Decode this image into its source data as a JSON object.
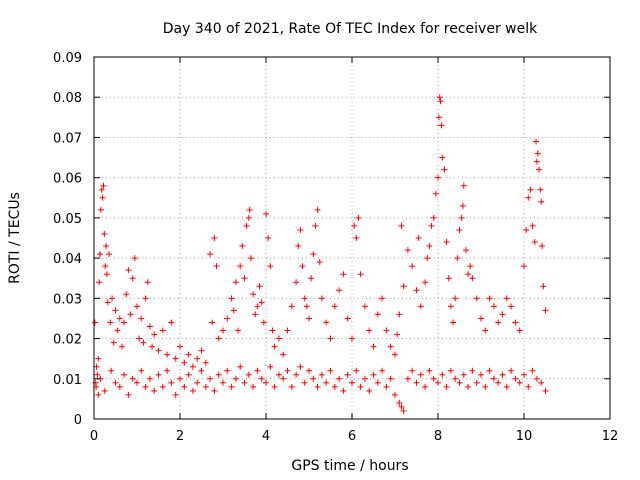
{
  "chart_data": {
    "type": "scatter",
    "title": "Day 340 of 2021, Rate Of TEC Index for receiver welk",
    "xlabel": "GPS time / hours",
    "ylabel": "ROTI / TECUs",
    "xlim": [
      0,
      12
    ],
    "ylim": [
      0,
      0.09
    ],
    "x_ticks": [
      "0",
      "2",
      "4",
      "6",
      "8",
      "10",
      "12"
    ],
    "y_ticks": [
      "0",
      "0.01",
      "0.02",
      "0.03",
      "0.04",
      "0.05",
      "0.06",
      "0.07",
      "0.08",
      "0.09"
    ],
    "grid": true,
    "marker": "+",
    "color": "#ff0000",
    "series": [
      {
        "name": "ROTI",
        "points": [
          [
            0.02,
            0.024
          ],
          [
            0.04,
            0.009
          ],
          [
            0.06,
            0.013
          ],
          [
            0.08,
            0.011
          ],
          [
            0.1,
            0.015
          ],
          [
            0.12,
            0.034
          ],
          [
            0.14,
            0.041
          ],
          [
            0.16,
            0.052
          ],
          [
            0.18,
            0.057
          ],
          [
            0.2,
            0.055
          ],
          [
            0.22,
            0.058
          ],
          [
            0.24,
            0.046
          ],
          [
            0.26,
            0.038
          ],
          [
            0.28,
            0.043
          ],
          [
            0.3,
            0.036
          ],
          [
            0.32,
            0.029
          ],
          [
            0.35,
            0.041
          ],
          [
            0.38,
            0.024
          ],
          [
            0.42,
            0.03
          ],
          [
            0.46,
            0.019
          ],
          [
            0.5,
            0.027
          ],
          [
            0.55,
            0.022
          ],
          [
            0.6,
            0.025
          ],
          [
            0.65,
            0.018
          ],
          [
            0.7,
            0.024
          ],
          [
            0.75,
            0.031
          ],
          [
            0.8,
            0.037
          ],
          [
            0.85,
            0.026
          ],
          [
            0.9,
            0.035
          ],
          [
            0.95,
            0.04
          ],
          [
            1.0,
            0.028
          ],
          [
            1.05,
            0.02
          ],
          [
            1.1,
            0.025
          ],
          [
            1.15,
            0.019
          ],
          [
            1.2,
            0.03
          ],
          [
            1.25,
            0.034
          ],
          [
            1.3,
            0.023
          ],
          [
            1.35,
            0.018
          ],
          [
            1.4,
            0.021
          ],
          [
            1.5,
            0.017
          ],
          [
            1.6,
            0.022
          ],
          [
            1.7,
            0.016
          ],
          [
            1.8,
            0.024
          ],
          [
            1.9,
            0.015
          ],
          [
            2.0,
            0.018
          ],
          [
            2.1,
            0.014
          ],
          [
            2.2,
            0.016
          ],
          [
            2.3,
            0.013
          ],
          [
            2.4,
            0.015
          ],
          [
            2.5,
            0.017
          ],
          [
            2.6,
            0.014
          ],
          [
            2.7,
            0.041
          ],
          [
            2.75,
            0.024
          ],
          [
            2.8,
            0.045
          ],
          [
            2.85,
            0.038
          ],
          [
            2.9,
            0.02
          ],
          [
            3.0,
            0.022
          ],
          [
            3.1,
            0.025
          ],
          [
            3.2,
            0.03
          ],
          [
            3.25,
            0.027
          ],
          [
            3.3,
            0.034
          ],
          [
            3.35,
            0.022
          ],
          [
            3.4,
            0.038
          ],
          [
            3.45,
            0.043
          ],
          [
            3.5,
            0.035
          ],
          [
            3.55,
            0.048
          ],
          [
            3.6,
            0.05
          ],
          [
            3.62,
            0.052
          ],
          [
            3.65,
            0.04
          ],
          [
            3.7,
            0.031
          ],
          [
            3.75,
            0.026
          ],
          [
            3.8,
            0.028
          ],
          [
            3.85,
            0.033
          ],
          [
            3.9,
            0.029
          ],
          [
            3.95,
            0.024
          ],
          [
            4.0,
            0.051
          ],
          [
            4.05,
            0.045
          ],
          [
            4.1,
            0.038
          ],
          [
            4.15,
            0.022
          ],
          [
            4.2,
            0.018
          ],
          [
            4.3,
            0.02
          ],
          [
            4.4,
            0.016
          ],
          [
            4.5,
            0.022
          ],
          [
            4.6,
            0.028
          ],
          [
            4.7,
            0.034
          ],
          [
            4.75,
            0.043
          ],
          [
            4.8,
            0.047
          ],
          [
            4.85,
            0.038
          ],
          [
            4.9,
            0.03
          ],
          [
            4.95,
            0.028
          ],
          [
            5.0,
            0.025
          ],
          [
            5.05,
            0.035
          ],
          [
            5.1,
            0.041
          ],
          [
            5.15,
            0.048
          ],
          [
            5.2,
            0.052
          ],
          [
            5.25,
            0.039
          ],
          [
            5.3,
            0.03
          ],
          [
            5.4,
            0.024
          ],
          [
            5.5,
            0.02
          ],
          [
            5.6,
            0.028
          ],
          [
            5.7,
            0.032
          ],
          [
            5.8,
            0.036
          ],
          [
            5.9,
            0.025
          ],
          [
            6.0,
            0.02
          ],
          [
            6.05,
            0.048
          ],
          [
            6.1,
            0.045
          ],
          [
            6.15,
            0.05
          ],
          [
            6.2,
            0.036
          ],
          [
            6.3,
            0.028
          ],
          [
            6.4,
            0.022
          ],
          [
            6.5,
            0.018
          ],
          [
            6.6,
            0.026
          ],
          [
            6.7,
            0.03
          ],
          [
            6.8,
            0.022
          ],
          [
            6.9,
            0.018
          ],
          [
            7.0,
            0.016
          ],
          [
            7.05,
            0.021
          ],
          [
            7.1,
            0.026
          ],
          [
            7.15,
            0.048
          ],
          [
            7.2,
            0.033
          ],
          [
            7.3,
            0.042
          ],
          [
            7.4,
            0.038
          ],
          [
            7.5,
            0.032
          ],
          [
            7.55,
            0.045
          ],
          [
            7.6,
            0.028
          ],
          [
            7.7,
            0.034
          ],
          [
            7.75,
            0.04
          ],
          [
            7.8,
            0.043
          ],
          [
            7.85,
            0.048
          ],
          [
            7.9,
            0.05
          ],
          [
            7.95,
            0.056
          ],
          [
            8.0,
            0.06
          ],
          [
            8.02,
            0.075
          ],
          [
            8.04,
            0.08
          ],
          [
            8.06,
            0.079
          ],
          [
            8.08,
            0.073
          ],
          [
            8.1,
            0.065
          ],
          [
            8.15,
            0.062
          ],
          [
            8.2,
            0.044
          ],
          [
            8.25,
            0.035
          ],
          [
            8.3,
            0.028
          ],
          [
            8.35,
            0.024
          ],
          [
            8.4,
            0.03
          ],
          [
            8.45,
            0.04
          ],
          [
            8.5,
            0.047
          ],
          [
            8.55,
            0.05
          ],
          [
            8.58,
            0.053
          ],
          [
            8.6,
            0.058
          ],
          [
            8.65,
            0.042
          ],
          [
            8.7,
            0.036
          ],
          [
            8.75,
            0.038
          ],
          [
            8.8,
            0.035
          ],
          [
            8.9,
            0.03
          ],
          [
            9.0,
            0.025
          ],
          [
            9.1,
            0.022
          ],
          [
            9.2,
            0.03
          ],
          [
            9.3,
            0.028
          ],
          [
            9.4,
            0.024
          ],
          [
            9.5,
            0.026
          ],
          [
            9.6,
            0.03
          ],
          [
            9.7,
            0.028
          ],
          [
            9.8,
            0.024
          ],
          [
            9.9,
            0.022
          ],
          [
            10.0,
            0.038
          ],
          [
            10.05,
            0.047
          ],
          [
            10.1,
            0.055
          ],
          [
            10.15,
            0.057
          ],
          [
            10.2,
            0.048
          ],
          [
            10.25,
            0.044
          ],
          [
            10.28,
            0.069
          ],
          [
            10.3,
            0.064
          ],
          [
            10.32,
            0.066
          ],
          [
            10.35,
            0.062
          ],
          [
            10.38,
            0.057
          ],
          [
            10.4,
            0.054
          ],
          [
            10.42,
            0.043
          ],
          [
            10.45,
            0.033
          ],
          [
            10.5,
            0.027
          ],
          [
            0.05,
            0.008
          ],
          [
            0.1,
            0.006
          ],
          [
            0.15,
            0.01
          ],
          [
            0.25,
            0.007
          ],
          [
            0.4,
            0.012
          ],
          [
            0.5,
            0.009
          ],
          [
            0.6,
            0.008
          ],
          [
            0.7,
            0.011
          ],
          [
            0.8,
            0.006
          ],
          [
            0.9,
            0.01
          ],
          [
            1.0,
            0.009
          ],
          [
            1.1,
            0.012
          ],
          [
            1.2,
            0.008
          ],
          [
            1.3,
            0.01
          ],
          [
            1.4,
            0.007
          ],
          [
            1.5,
            0.011
          ],
          [
            1.6,
            0.008
          ],
          [
            1.7,
            0.012
          ],
          [
            1.8,
            0.009
          ],
          [
            1.9,
            0.006
          ],
          [
            2.0,
            0.01
          ],
          [
            2.1,
            0.008
          ],
          [
            2.2,
            0.011
          ],
          [
            2.3,
            0.007
          ],
          [
            2.4,
            0.009
          ],
          [
            2.5,
            0.012
          ],
          [
            2.6,
            0.008
          ],
          [
            2.7,
            0.01
          ],
          [
            2.8,
            0.007
          ],
          [
            2.9,
            0.011
          ],
          [
            3.0,
            0.009
          ],
          [
            3.1,
            0.012
          ],
          [
            3.2,
            0.008
          ],
          [
            3.3,
            0.01
          ],
          [
            3.4,
            0.013
          ],
          [
            3.5,
            0.009
          ],
          [
            3.6,
            0.011
          ],
          [
            3.7,
            0.008
          ],
          [
            3.8,
            0.012
          ],
          [
            3.9,
            0.01
          ],
          [
            4.0,
            0.009
          ],
          [
            4.1,
            0.013
          ],
          [
            4.2,
            0.008
          ],
          [
            4.3,
            0.011
          ],
          [
            4.4,
            0.01
          ],
          [
            4.5,
            0.012
          ],
          [
            4.6,
            0.008
          ],
          [
            4.7,
            0.011
          ],
          [
            4.8,
            0.013
          ],
          [
            4.9,
            0.009
          ],
          [
            5.0,
            0.012
          ],
          [
            5.1,
            0.01
          ],
          [
            5.2,
            0.008
          ],
          [
            5.3,
            0.011
          ],
          [
            5.4,
            0.009
          ],
          [
            5.5,
            0.012
          ],
          [
            5.6,
            0.008
          ],
          [
            5.7,
            0.01
          ],
          [
            5.8,
            0.007
          ],
          [
            5.9,
            0.011
          ],
          [
            6.0,
            0.009
          ],
          [
            6.1,
            0.012
          ],
          [
            6.2,
            0.008
          ],
          [
            6.3,
            0.01
          ],
          [
            6.4,
            0.007
          ],
          [
            6.5,
            0.011
          ],
          [
            6.6,
            0.009
          ],
          [
            6.7,
            0.012
          ],
          [
            6.8,
            0.008
          ],
          [
            6.9,
            0.01
          ],
          [
            7.0,
            0.006
          ],
          [
            7.1,
            0.004
          ],
          [
            7.15,
            0.003
          ],
          [
            7.2,
            0.002
          ],
          [
            7.3,
            0.01
          ],
          [
            7.4,
            0.012
          ],
          [
            7.5,
            0.009
          ],
          [
            7.6,
            0.011
          ],
          [
            7.7,
            0.008
          ],
          [
            7.8,
            0.012
          ],
          [
            7.9,
            0.01
          ],
          [
            8.0,
            0.009
          ],
          [
            8.1,
            0.011
          ],
          [
            8.2,
            0.008
          ],
          [
            8.3,
            0.012
          ],
          [
            8.4,
            0.01
          ],
          [
            8.5,
            0.009
          ],
          [
            8.6,
            0.011
          ],
          [
            8.7,
            0.008
          ],
          [
            8.8,
            0.012
          ],
          [
            8.9,
            0.009
          ],
          [
            9.0,
            0.011
          ],
          [
            9.1,
            0.008
          ],
          [
            9.2,
            0.012
          ],
          [
            9.3,
            0.01
          ],
          [
            9.4,
            0.009
          ],
          [
            9.5,
            0.011
          ],
          [
            9.6,
            0.008
          ],
          [
            9.7,
            0.012
          ],
          [
            9.8,
            0.01
          ],
          [
            9.9,
            0.009
          ],
          [
            10.0,
            0.011
          ],
          [
            10.1,
            0.008
          ],
          [
            10.2,
            0.012
          ],
          [
            10.3,
            0.01
          ],
          [
            10.4,
            0.009
          ],
          [
            10.5,
            0.007
          ]
        ]
      }
    ]
  }
}
